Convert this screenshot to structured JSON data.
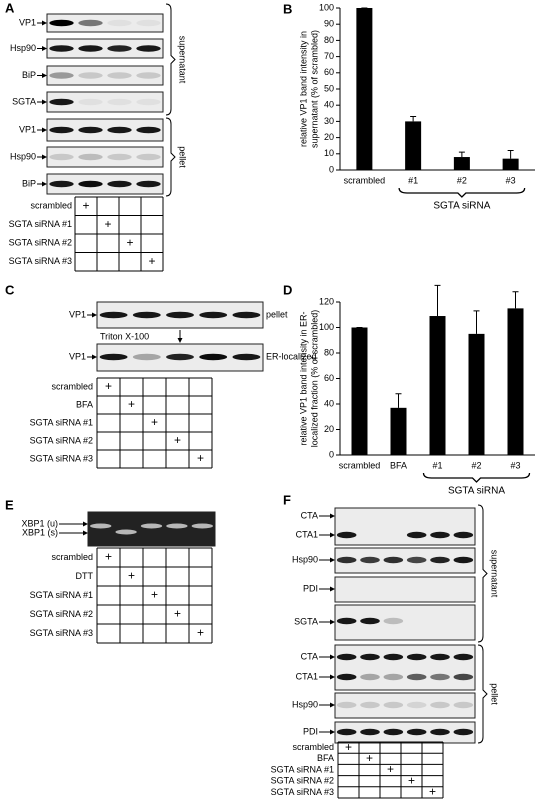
{
  "panel_labels": [
    "A",
    "B",
    "C",
    "D",
    "E",
    "F"
  ],
  "A": {
    "blot_labels": [
      "VP1",
      "Hsp90",
      "BiP",
      "SGTA",
      "VP1",
      "Hsp90",
      "BiP"
    ],
    "fractions": [
      "supernatant",
      "pellet"
    ],
    "table": [
      {
        "label": "scrambled",
        "cells": [
          "+",
          null,
          null,
          null
        ]
      },
      {
        "label": "SGTA siRNA #1",
        "cells": [
          null,
          "+",
          null,
          null
        ]
      },
      {
        "label": "SGTA siRNA #2",
        "cells": [
          null,
          null,
          "+",
          null
        ]
      },
      {
        "label": "SGTA siRNA #3",
        "cells": [
          null,
          null,
          null,
          "+"
        ]
      }
    ]
  },
  "C": {
    "blot_labels": [
      "VP1",
      "VP1"
    ],
    "fractions": [
      "pellet",
      "ER-localized"
    ],
    "treatment": "Triton X-100",
    "table": [
      {
        "label": "scrambled",
        "cells": [
          "+",
          null,
          null,
          null,
          null
        ]
      },
      {
        "label": "BFA",
        "cells": [
          null,
          "+",
          null,
          null,
          null
        ]
      },
      {
        "label": "SGTA siRNA #1",
        "cells": [
          null,
          null,
          "+",
          null,
          null
        ]
      },
      {
        "label": "SGTA siRNA #2",
        "cells": [
          null,
          null,
          null,
          "+",
          null
        ]
      },
      {
        "label": "SGTA siRNA #3",
        "cells": [
          null,
          null,
          null,
          null,
          "+"
        ]
      }
    ]
  },
  "E": {
    "blot_labels": [
      "XBP1 (u)",
      "XBP1 (s)"
    ],
    "table": [
      {
        "label": "scrambled",
        "cells": [
          "+",
          null,
          null,
          null,
          null
        ]
      },
      {
        "label": "DTT",
        "cells": [
          null,
          "+",
          null,
          null,
          null
        ]
      },
      {
        "label": "SGTA siRNA #1",
        "cells": [
          null,
          null,
          "+",
          null,
          null
        ]
      },
      {
        "label": "SGTA siRNA #2",
        "cells": [
          null,
          null,
          null,
          "+",
          null
        ]
      },
      {
        "label": "SGTA siRNA #3",
        "cells": [
          null,
          null,
          null,
          null,
          "+"
        ]
      }
    ]
  },
  "F": {
    "blot_labels": [
      "CTA",
      "CTA1",
      "Hsp90",
      "PDI",
      "SGTA",
      "CTA",
      "CTA1",
      "Hsp90",
      "PDI"
    ],
    "fractions": [
      "supernatant",
      "pellet"
    ],
    "table": [
      {
        "label": "scrambled",
        "cells": [
          "+",
          null,
          null,
          null,
          null
        ]
      },
      {
        "label": "BFA",
        "cells": [
          null,
          "+",
          null,
          null,
          null
        ]
      },
      {
        "label": "SGTA siRNA #1",
        "cells": [
          null,
          null,
          "+",
          null,
          null
        ]
      },
      {
        "label": "SGTA siRNA #2",
        "cells": [
          null,
          null,
          null,
          "+",
          null
        ]
      },
      {
        "label": "SGTA siRNA #3",
        "cells": [
          null,
          null,
          null,
          null,
          "+"
        ]
      }
    ]
  },
  "chart_data": [
    {
      "type": "bar",
      "ylabel": [
        "relative VP1 band intensity in",
        "supernatant (% of scrambled)"
      ],
      "categories": [
        "scrambled",
        "#1",
        "#2",
        "#3"
      ],
      "values": [
        100,
        30,
        8,
        7
      ],
      "errors": [
        0,
        3,
        3,
        5
      ],
      "color": "#000000",
      "ylim": [
        0,
        100
      ],
      "yticks": [
        0,
        10,
        20,
        30,
        40,
        50,
        60,
        70,
        80,
        90,
        100
      ],
      "group_label": "SGTA siRNA"
    },
    {
      "type": "bar",
      "ylabel": [
        "relative VP1 band intensity in ER-",
        "localized fraction (% of scrambled)"
      ],
      "categories": [
        "scrambled",
        "BFA",
        "#1",
        "#2",
        "#3"
      ],
      "values": [
        100,
        37,
        109,
        95,
        115
      ],
      "errors": [
        0,
        11,
        24,
        18,
        13
      ],
      "color": "#000000",
      "ylim": [
        0,
        120
      ],
      "yticks": [
        0,
        20,
        40,
        60,
        80,
        100,
        120
      ],
      "group_label": "SGTA siRNA"
    }
  ]
}
